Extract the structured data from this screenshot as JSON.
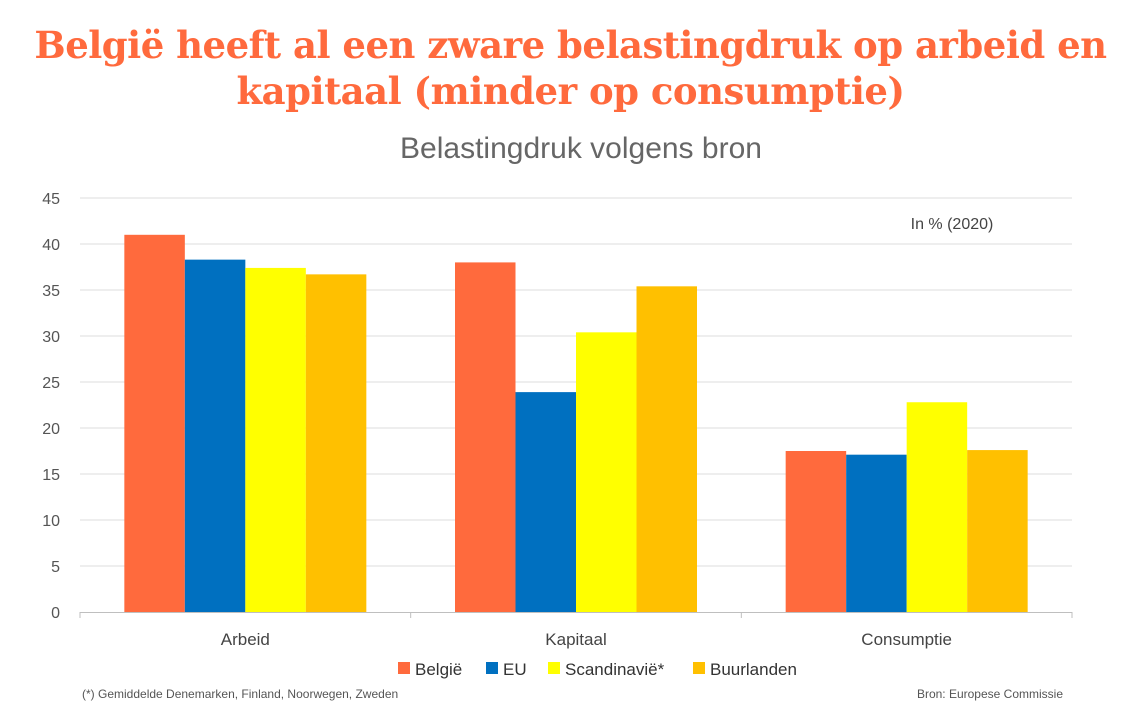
{
  "headline": {
    "line1": "België heeft al een zware belastingdruk op arbeid en",
    "line2": "kapitaal (minder op consumptie)"
  },
  "chart_data": {
    "type": "bar",
    "title": "",
    "subtitle": "Belastingdruk volgens bron",
    "annotation": "In % (2020)",
    "xlabel": "",
    "ylabel": "",
    "ylim": [
      0,
      45
    ],
    "yticks": [
      0,
      5,
      10,
      15,
      20,
      25,
      30,
      35,
      40,
      45
    ],
    "grid": true,
    "legend_position": "bottom",
    "categories": [
      "Arbeid",
      "Kapitaal",
      "Consumptie"
    ],
    "series": [
      {
        "name": "België",
        "color": "#ff6a3d",
        "values": [
          41.0,
          38.0,
          17.5
        ]
      },
      {
        "name": "EU",
        "color": "#0070c0",
        "values": [
          38.3,
          23.9,
          17.1
        ]
      },
      {
        "name": "Scandinavië*",
        "color": "#ffff00",
        "values": [
          37.4,
          30.4,
          22.8
        ]
      },
      {
        "name": "Buurlanden",
        "color": "#ffc000",
        "values": [
          36.7,
          35.4,
          17.6
        ]
      }
    ]
  },
  "footnote": "(*) Gemiddelde Denemarken, Finland, Noorwegen, Zweden",
  "source": "Bron: Europese Commissie"
}
